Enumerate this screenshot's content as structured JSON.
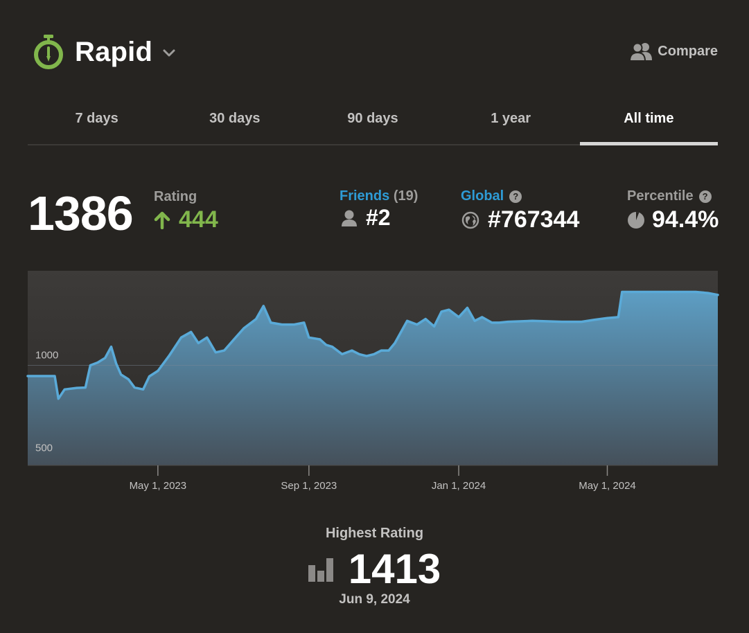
{
  "header": {
    "title": "Rapid",
    "icon": "stopwatch-icon",
    "compare_label": "Compare"
  },
  "tabs": [
    {
      "label": "7 days",
      "active": false
    },
    {
      "label": "30 days",
      "active": false
    },
    {
      "label": "90 days",
      "active": false
    },
    {
      "label": "1 year",
      "active": false
    },
    {
      "label": "All time",
      "active": true
    }
  ],
  "stats": {
    "rating": "1386",
    "rating_label": "Rating",
    "rating_change": "444",
    "friends_label": "Friends",
    "friends_count": "(19)",
    "friends_rank": "#2",
    "global_label": "Global",
    "global_rank": "#767344",
    "percentile_label": "Percentile",
    "percentile": "94.4%"
  },
  "highest": {
    "label": "Highest Rating",
    "value": "1413",
    "date": "Jun 9, 2024"
  },
  "colors": {
    "background": "#262421",
    "accent_green": "#81b64c",
    "link_blue": "#2e9bd6",
    "line": "#5aaad8"
  },
  "chart_data": {
    "type": "area",
    "x_ticks": [
      "May 1, 2023",
      "Sep 1, 2023",
      "Jan 1, 2024",
      "May 1, 2024"
    ],
    "y_ticks": [
      1000,
      500
    ],
    "ylim": [
      460,
      1510
    ],
    "x_range": [
      "Jan 15, 2023",
      "Jul 30, 2024"
    ],
    "series": [
      {
        "points": [
          [
            "Jan 15, 2023",
            942
          ],
          [
            "Feb 6, 2023",
            942
          ],
          [
            "Feb 9, 2023",
            820
          ],
          [
            "Feb 14, 2023",
            870
          ],
          [
            "Feb 24, 2023",
            878
          ],
          [
            "Mar 3, 2023",
            880
          ],
          [
            "Mar 7, 2023",
            1000
          ],
          [
            "Mar 13, 2023",
            1015
          ],
          [
            "Mar 19, 2023",
            1040
          ],
          [
            "Mar 24, 2023",
            1100
          ],
          [
            "Mar 28, 2023",
            1010
          ],
          [
            "Apr 1, 2023",
            950
          ],
          [
            "Apr 7, 2023",
            925
          ],
          [
            "Apr 12, 2023",
            880
          ],
          [
            "Apr 19, 2023",
            870
          ],
          [
            "Apr 24, 2023",
            940
          ],
          [
            "May 1, 2023",
            970
          ],
          [
            "May 10, 2023",
            1050
          ],
          [
            "May 20, 2023",
            1150
          ],
          [
            "May 28, 2023",
            1180
          ],
          [
            "Jun 3, 2023",
            1120
          ],
          [
            "Jun 10, 2023",
            1150
          ],
          [
            "Jun 17, 2023",
            1070
          ],
          [
            "Jun 24, 2023",
            1080
          ],
          [
            "Jul 2, 2023",
            1140
          ],
          [
            "Jul 10, 2023",
            1200
          ],
          [
            "Jul 20, 2023",
            1250
          ],
          [
            "Jul 26, 2023",
            1320
          ],
          [
            "Aug 1, 2023",
            1230
          ],
          [
            "Aug 10, 2023",
            1220
          ],
          [
            "Aug 20, 2023",
            1220
          ],
          [
            "Aug 28, 2023",
            1230
          ],
          [
            "Sep 1, 2023",
            1150
          ],
          [
            "Sep 10, 2023",
            1140
          ],
          [
            "Sep 15, 2023",
            1110
          ],
          [
            "Sep 20, 2023",
            1100
          ],
          [
            "Sep 28, 2023",
            1060
          ],
          [
            "Oct 6, 2023",
            1080
          ],
          [
            "Oct 12, 2023",
            1060
          ],
          [
            "Oct 18, 2023",
            1050
          ],
          [
            "Oct 24, 2023",
            1060
          ],
          [
            "Oct 30, 2023",
            1080
          ],
          [
            "Nov 5, 2023",
            1080
          ],
          [
            "Nov 10, 2023",
            1120
          ],
          [
            "Nov 20, 2023",
            1240
          ],
          [
            "Nov 28, 2023",
            1220
          ],
          [
            "Dec 5, 2023",
            1250
          ],
          [
            "Dec 12, 2023",
            1210
          ],
          [
            "Dec 18, 2023",
            1290
          ],
          [
            "Dec 24, 2023",
            1300
          ],
          [
            "Jan 1, 2024",
            1260
          ],
          [
            "Jan 8, 2024",
            1310
          ],
          [
            "Jan 14, 2024",
            1240
          ],
          [
            "Jan 20, 2024",
            1260
          ],
          [
            "Jan 28, 2024",
            1230
          ],
          [
            "Feb 3, 2024",
            1230
          ],
          [
            "Feb 10, 2024",
            1235
          ],
          [
            "Mar 1, 2024",
            1240
          ],
          [
            "Mar 25, 2024",
            1235
          ],
          [
            "Apr 10, 2024",
            1235
          ],
          [
            "Apr 20, 2024",
            1245
          ],
          [
            "May 1, 2024",
            1255
          ],
          [
            "May 10, 2024",
            1260
          ],
          [
            "May 13, 2024",
            1396
          ],
          [
            "May 25, 2024",
            1396
          ],
          [
            "Jun 20, 2024",
            1396
          ],
          [
            "Jul 12, 2024",
            1396
          ],
          [
            "Jul 22, 2024",
            1390
          ],
          [
            "Jul 30, 2024",
            1380
          ]
        ]
      }
    ]
  }
}
